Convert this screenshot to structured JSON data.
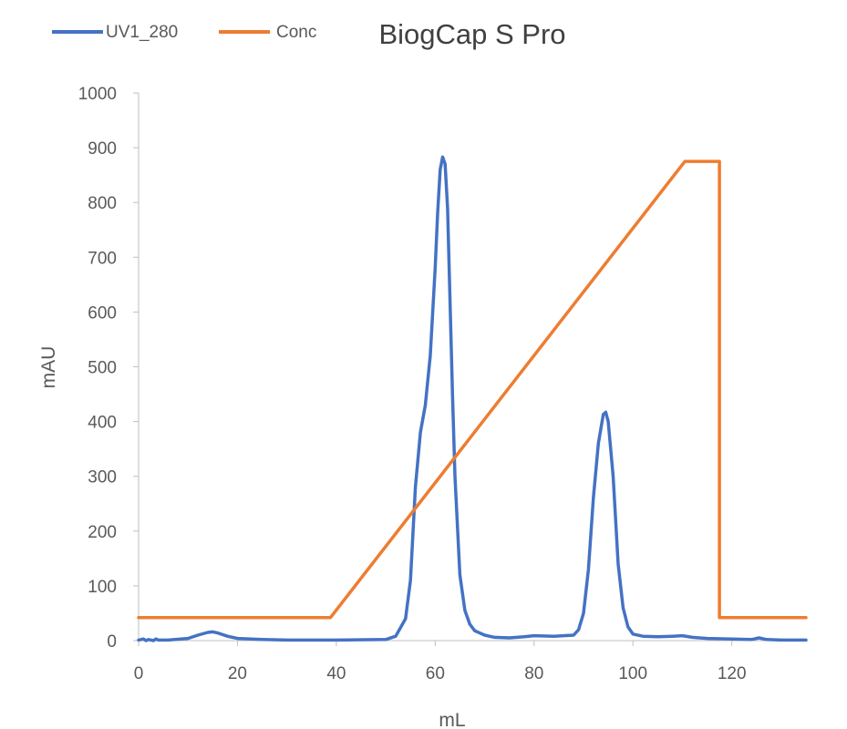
{
  "chart_data": {
    "type": "line",
    "title": "BiogCap S Pro",
    "xlabel": "mL",
    "ylabel": "mAU",
    "xlim": [
      0,
      135
    ],
    "ylim": [
      0,
      1000
    ],
    "x_ticks": [
      0,
      20,
      40,
      60,
      80,
      100,
      120
    ],
    "y_ticks": [
      0,
      100,
      200,
      300,
      400,
      500,
      600,
      700,
      800,
      900,
      1000
    ],
    "grid": false,
    "legend_position": "top-left",
    "series": [
      {
        "name": "UV1_280",
        "color": "#4472c4",
        "x": [
          0,
          1,
          1.5,
          2,
          3,
          3.5,
          4,
          6,
          10,
          12,
          14,
          15,
          16,
          18,
          20,
          25,
          30,
          40,
          50,
          52,
          54,
          55,
          56,
          57,
          58,
          59,
          60,
          60.5,
          61,
          61.5,
          62,
          62.5,
          63,
          63.5,
          64,
          65,
          66,
          67,
          68,
          70,
          72,
          75,
          78,
          80,
          84,
          88,
          89,
          90,
          91,
          92,
          93,
          94,
          94.5,
          95,
          96,
          97,
          98,
          99,
          100,
          102,
          105,
          108,
          110,
          112,
          115,
          120,
          124,
          125.5,
          127,
          130,
          135
        ],
        "y": [
          1,
          3,
          0,
          2,
          0,
          3,
          1,
          1,
          4,
          10,
          15,
          16,
          14,
          8,
          4,
          2,
          1,
          1,
          2,
          8,
          40,
          110,
          280,
          380,
          430,
          520,
          680,
          780,
          860,
          883,
          870,
          790,
          620,
          450,
          300,
          120,
          55,
          30,
          18,
          10,
          6,
          5,
          7,
          9,
          8,
          10,
          20,
          50,
          130,
          260,
          360,
          413,
          417,
          400,
          300,
          140,
          60,
          25,
          12,
          8,
          7,
          8,
          9,
          6,
          4,
          3,
          2,
          5,
          2,
          1,
          1
        ]
      },
      {
        "name": "Conc",
        "color": "#ed7d31",
        "x": [
          0,
          38.8,
          110.5,
          117.5,
          117.5,
          135
        ],
        "y": [
          42,
          42,
          875,
          875,
          42,
          42
        ]
      }
    ]
  }
}
